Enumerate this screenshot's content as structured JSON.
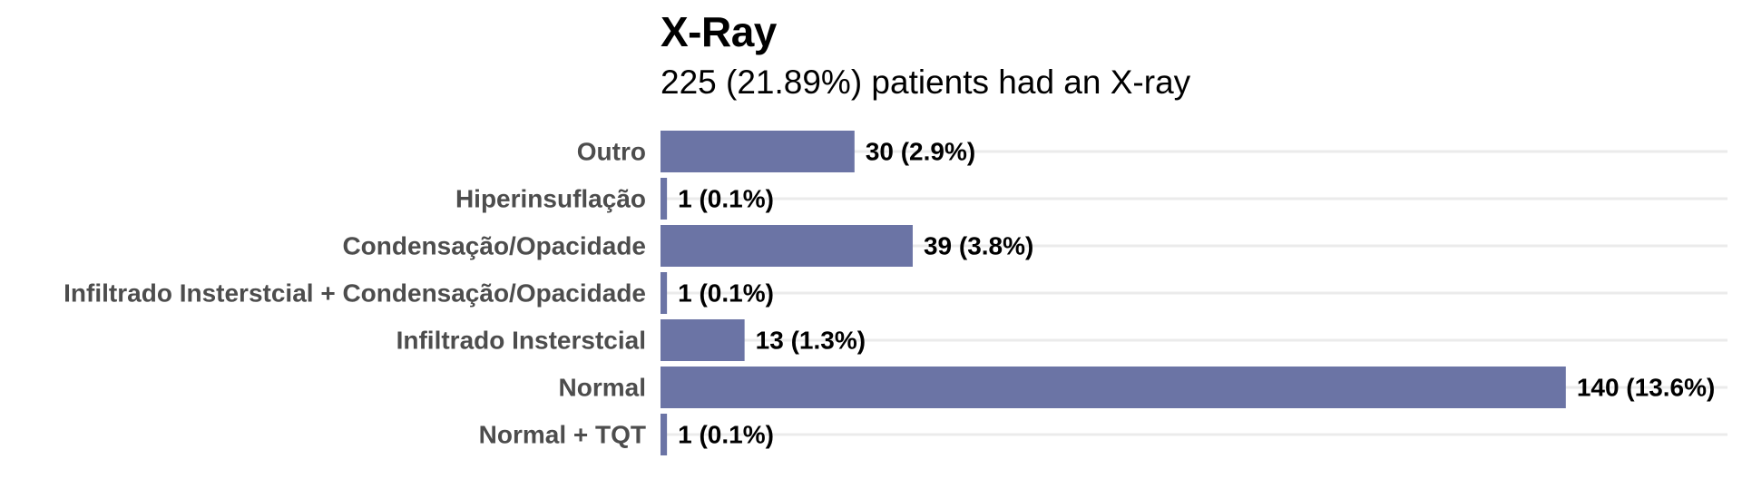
{
  "chart_data": {
    "type": "bar",
    "orientation": "horizontal",
    "title": "X-Ray",
    "subtitle": "225 (21.89%) patients had an X-ray",
    "categories": [
      "Outro",
      "Hiperinsuflação",
      "Condensação/Opacidade",
      "Infiltrado Insterstcial + Condensação/Opacidade",
      "Infiltrado Insterstcial",
      "Normal",
      "Normal + TQT"
    ],
    "values": [
      30,
      1,
      39,
      1,
      13,
      140,
      1
    ],
    "value_labels": [
      "30 (2.9%)",
      "1 (0.1%)",
      "39 (3.8%)",
      "1 (0.1%)",
      "13 (1.3%)",
      "140 (13.6%)",
      "1 (0.1%)"
    ],
    "xlim": [
      0,
      165
    ],
    "grid": true,
    "legend": "none",
    "colors": {
      "bar": "#6b74a5",
      "grid": "#ebebeb",
      "category_text": "#4d4d4d",
      "value_text": "#000000"
    }
  }
}
